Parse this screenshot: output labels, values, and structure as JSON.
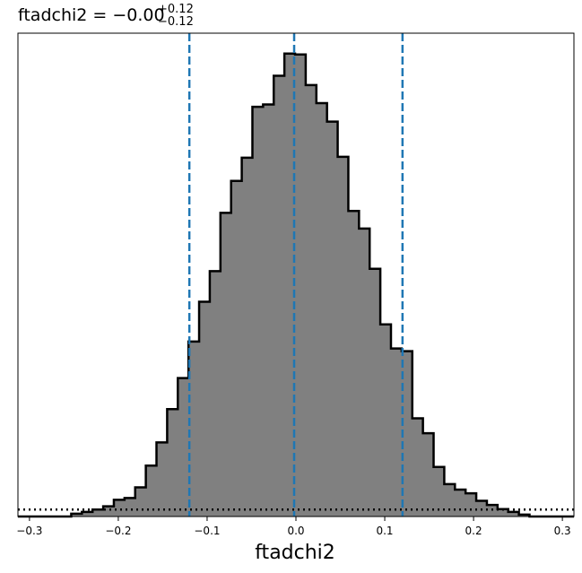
{
  "chart_data": {
    "type": "histogram",
    "title": {
      "main": "ftadchi2 = −0.00",
      "sup": "+0.12",
      "sub": "−0.12"
    },
    "xlabel": "ftadchi2",
    "ylabel": "",
    "xlim": [
      -0.313,
      0.313
    ],
    "ylim": [
      0,
      1.044
    ],
    "xticks": [
      -0.3,
      -0.2,
      -0.1,
      0.0,
      0.1,
      0.2,
      0.3
    ],
    "xtick_labels": [
      "−0.3",
      "−0.2",
      "−0.1",
      "0.0",
      "0.1",
      "0.2",
      "0.3"
    ],
    "yticks_visible": false,
    "bin_edges": [
      -0.313,
      -0.301,
      -0.289,
      -0.277,
      -0.265,
      -0.253,
      -0.241,
      -0.229,
      -0.217,
      -0.205,
      -0.193,
      -0.181,
      -0.169,
      -0.157,
      -0.145,
      -0.133,
      -0.121,
      -0.109,
      -0.097,
      -0.085,
      -0.073,
      -0.061,
      -0.049,
      -0.037,
      -0.025,
      -0.013,
      -0.001,
      0.011,
      0.023,
      0.035,
      0.047,
      0.059,
      0.071,
      0.083,
      0.095,
      0.107,
      0.119,
      0.131,
      0.143,
      0.155,
      0.167,
      0.179,
      0.191,
      0.203,
      0.215,
      0.227,
      0.239,
      0.251,
      0.263,
      0.275,
      0.287,
      0.299,
      0.313
    ],
    "counts": [
      0.0,
      0.0,
      0.0,
      0.0,
      0.0,
      0.006,
      0.01,
      0.015,
      0.022,
      0.036,
      0.04,
      0.063,
      0.11,
      0.16,
      0.232,
      0.299,
      0.378,
      0.464,
      0.53,
      0.656,
      0.725,
      0.775,
      0.885,
      0.89,
      0.952,
      1.0,
      0.998,
      0.932,
      0.893,
      0.853,
      0.777,
      0.66,
      0.622,
      0.535,
      0.415,
      0.363,
      0.357,
      0.212,
      0.18,
      0.107,
      0.07,
      0.058,
      0.05,
      0.034,
      0.025,
      0.016,
      0.01,
      0.004,
      0.0,
      0.0,
      0.0,
      0.0
    ],
    "fill_color": "#808080",
    "edge_color": "#000000",
    "quantile_lines": [
      {
        "x": -0.12,
        "style": "dashed",
        "color": "#1f77b4"
      },
      {
        "x": -0.002,
        "style": "dashed",
        "color": "#1f77b4"
      },
      {
        "x": 0.12,
        "style": "dashed",
        "color": "#1f77b4"
      }
    ],
    "reference_line": {
      "y": 0.015,
      "style": "dotted",
      "color": "#000000"
    },
    "grid": false,
    "legend": "none"
  }
}
